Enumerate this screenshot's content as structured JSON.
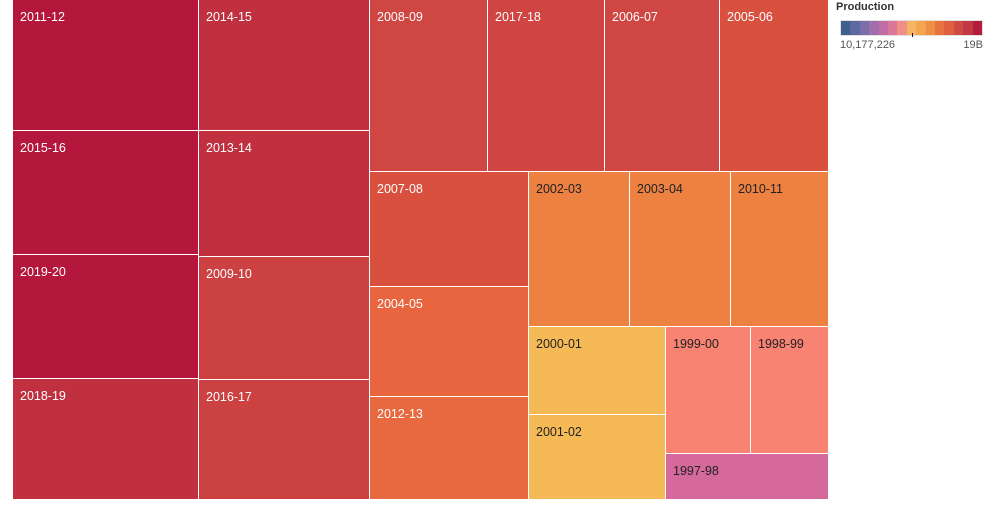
{
  "chart_data": {
    "type": "treemap",
    "measure": "Production",
    "legend": {
      "title": "Production",
      "min_label": "10,177,226",
      "max_label": "19B",
      "placement": "top-right",
      "gradient": [
        "#3f5f8f",
        "#5b6aa0",
        "#7c6ea8",
        "#a06fab",
        "#c06fa6",
        "#db7797",
        "#f09085",
        "#f7b462",
        "#f5a450",
        "#ef8e45",
        "#e7743f",
        "#dc5f40",
        "#cf4a42",
        "#c23844",
        "#b31b3f"
      ]
    },
    "items": [
      {
        "label": "2011-12",
        "value": 19.0,
        "color": "#b5173c",
        "text_color": "#ffffff"
      },
      {
        "label": "2014-15",
        "value": 17.0,
        "color": "#c0303f",
        "text_color": "#ffffff"
      },
      {
        "label": "2015-16",
        "value": 18.8,
        "color": "#b5173c",
        "text_color": "#ffffff"
      },
      {
        "label": "2013-14",
        "value": 16.8,
        "color": "#c0303f",
        "text_color": "#ffffff"
      },
      {
        "label": "2019-20",
        "value": 18.7,
        "color": "#b5173c",
        "text_color": "#ffffff"
      },
      {
        "label": "2009-10",
        "value": 16.3,
        "color": "#cc4141",
        "text_color": "#ffffff"
      },
      {
        "label": "2018-19",
        "value": 18.3,
        "color": "#c0303f",
        "text_color": "#ffffff"
      },
      {
        "label": "2016-17",
        "value": 16.4,
        "color": "#cc4141",
        "text_color": "#ffffff"
      },
      {
        "label": "2008-09",
        "value": 16.0,
        "color": "#cf4642",
        "text_color": "#ffffff"
      },
      {
        "label": "2017-18",
        "value": 16.2,
        "color": "#d04542",
        "text_color": "#ffffff"
      },
      {
        "label": "2006-07",
        "value": 16.0,
        "color": "#cf4642",
        "text_color": "#ffffff"
      },
      {
        "label": "2005-06",
        "value": 15.5,
        "color": "#d9503f",
        "text_color": "#ffffff"
      },
      {
        "label": "2007-08",
        "value": 15.8,
        "color": "#d9503f",
        "text_color": "#ffffff"
      },
      {
        "label": "2004-05",
        "value": 15.2,
        "color": "#e8653f",
        "text_color": "#ffffff"
      },
      {
        "label": "2012-13",
        "value": 15.2,
        "color": "#e8683f",
        "text_color": "#ffffff"
      },
      {
        "label": "2002-03",
        "value": 14.0,
        "color": "#ec8142",
        "text_color": "#222222"
      },
      {
        "label": "2003-04",
        "value": 13.9,
        "color": "#ec8142",
        "text_color": "#222222"
      },
      {
        "label": "2010-11",
        "value": 14.0,
        "color": "#ec8142",
        "text_color": "#222222"
      },
      {
        "label": "2000-01",
        "value": 12.6,
        "color": "#f5b955",
        "text_color": "#222222"
      },
      {
        "label": "2001-02",
        "value": 12.6,
        "color": "#f5b955",
        "text_color": "#222222"
      },
      {
        "label": "1999-00",
        "value": 11.9,
        "color": "#f88373",
        "text_color": "#222222"
      },
      {
        "label": "1998-99",
        "value": 11.9,
        "color": "#f88373",
        "text_color": "#222222"
      },
      {
        "label": "1997-98",
        "value": 10.2,
        "color": "#d5699b",
        "text_color": "#222222"
      }
    ]
  }
}
